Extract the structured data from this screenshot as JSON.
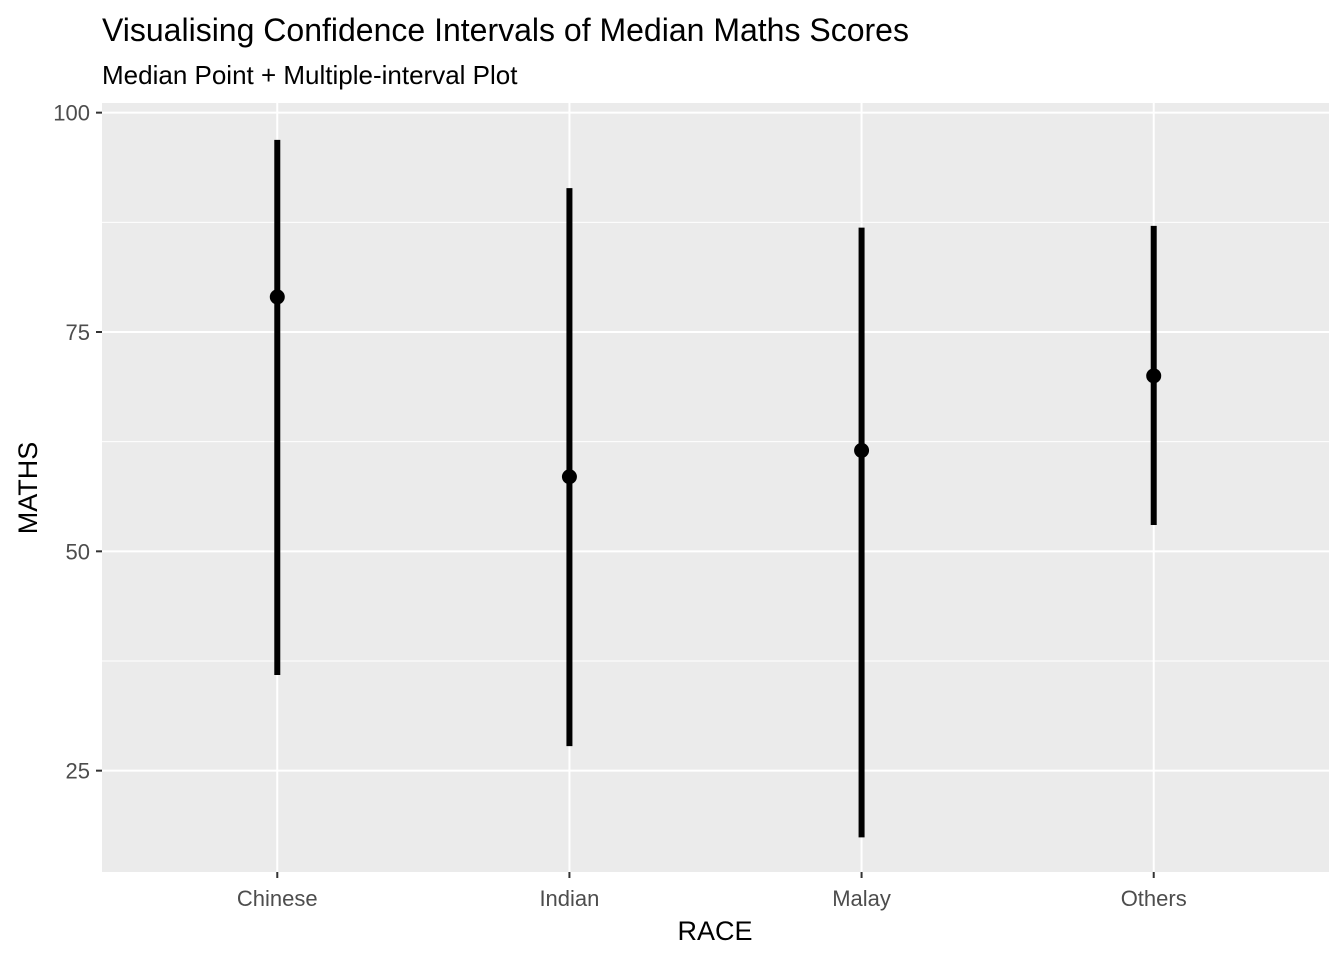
{
  "chart_data": {
    "type": "interval",
    "title": "Visualising Confidence Intervals of Median Maths Scores",
    "subtitle": "Median Point + Multiple-interval Plot",
    "xlabel": "RACE",
    "ylabel": "MATHS",
    "categories": [
      "Chinese",
      "Indian",
      "Malay",
      "Others"
    ],
    "median": [
      79,
      58.5,
      61.5,
      70
    ],
    "lower": [
      35.9,
      27.8,
      17.4,
      53
    ],
    "upper": [
      96.9,
      91.4,
      86.9,
      87.1
    ],
    "ylim": [
      13.45,
      101.1
    ],
    "yticks": [
      25,
      50,
      75,
      100
    ],
    "ytick_labels": [
      "25",
      "50",
      "75",
      "100"
    ],
    "grid": true,
    "colors": {
      "panel": "#ebebeb",
      "grid": "#ffffff",
      "mark": "#000000"
    }
  }
}
